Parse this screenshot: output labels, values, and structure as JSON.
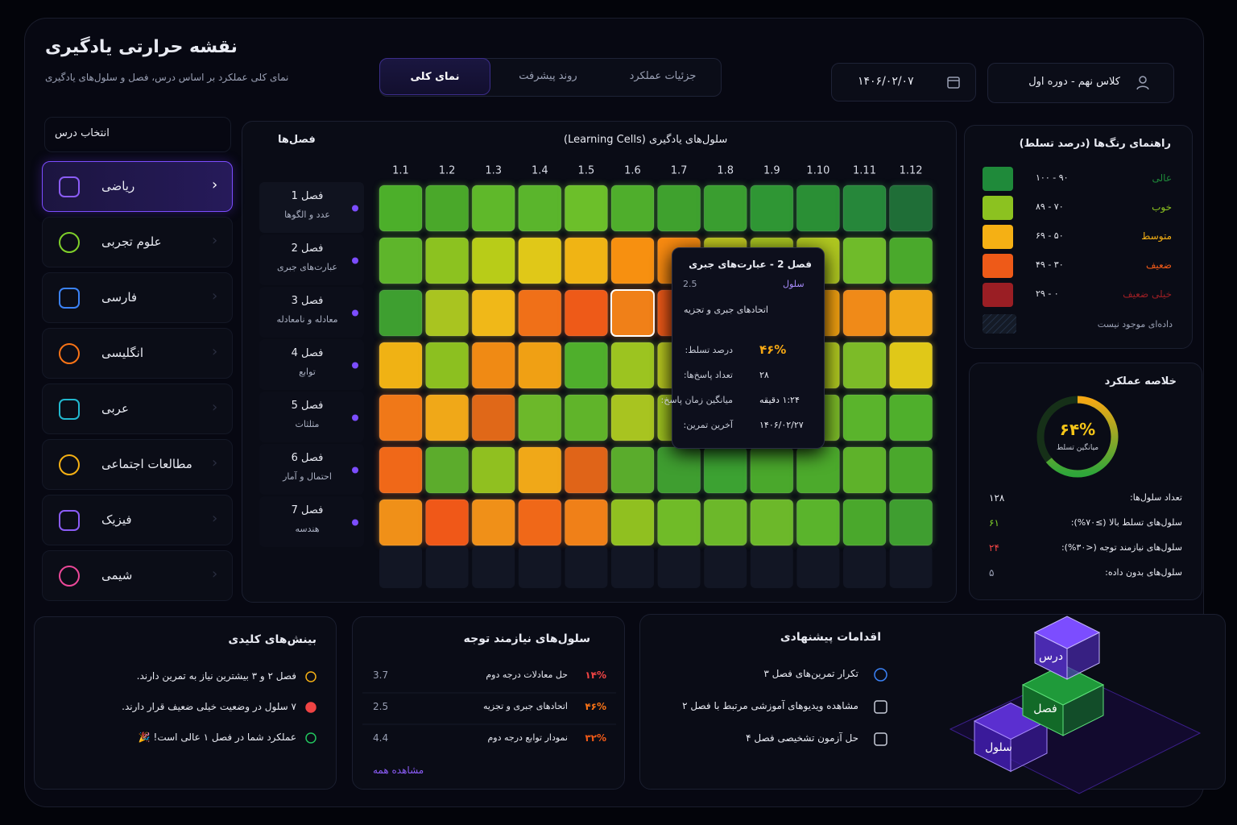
{
  "header": {
    "title": "نقشه حرارتی یادگیری",
    "subtitle": "نمای کلی عملکرد بر اساس درس، فصل و سلول‌های یادگیری",
    "tabs": [
      "نمای کلی",
      "روند پیشرفت",
      "جزئیات عملکرد"
    ],
    "date": "۱۴۰۶/۰۲/۰۷",
    "class_selector": "کلاس نهم - دوره اول"
  },
  "subjects": {
    "title": "انتخاب درس",
    "items": [
      "ریاضی",
      "علوم تجربی",
      "فارسی",
      "انگلیسی",
      "عربی",
      "مطالعات اجتماعی",
      "فیزیک",
      "شیمی"
    ]
  },
  "heatmap": {
    "title": "سلول‌های یادگیری (Learning Cells)",
    "rows_title": "فصل‌ها",
    "columns": [
      "1.1",
      "1.2",
      "1.3",
      "1.4",
      "1.5",
      "1.6",
      "1.7",
      "1.8",
      "1.9",
      "1.10",
      "1.11",
      "1.12"
    ],
    "rows": [
      {
        "chapter": "فصل 1",
        "topic": "عدد و الگوها",
        "colors": [
          "#4caf2a",
          "#4aa82a",
          "#5fb82a",
          "#5ab52c",
          "#6cbf2a",
          "#4fae2c",
          "#3fa12e",
          "#3a9e30",
          "#2f9634",
          "#2a8f35",
          "#26873a",
          "#1f6e37"
        ]
      },
      {
        "chapter": "فصل 2",
        "topic": "عبارت‌های جبری",
        "colors": [
          "#5eb52b",
          "#8cc220",
          "#b8cc18",
          "#e0c818",
          "#f0b414",
          "#f79010",
          "#f88a10",
          "#c0c820",
          "#a8c420",
          "#b0c820",
          "#6fbb2a",
          "#4aa92c"
        ]
      },
      {
        "chapter": "فصل 3",
        "topic": "معادله و نامعادله",
        "colors": [
          "#3e9f30",
          "#a9c420",
          "#f0b818",
          "#f07018",
          "#ee5a18",
          "#f08018",
          "#f05a18",
          "#f08018",
          "#c0c020",
          "#f0a010",
          "#f08a18",
          "#f0a818"
        ]
      },
      {
        "chapter": "فصل 4",
        "topic": "توابع",
        "colors": [
          "#f0b214",
          "#8cc020",
          "#f08a14",
          "#f0a014",
          "#4faf2c",
          "#9cc420",
          "#b8c820",
          "#c8c818",
          "#a0c420",
          "#b0c820",
          "#7cbb28",
          "#e0c818"
        ]
      },
      {
        "chapter": "فصل 5",
        "topic": "مثلثات",
        "colors": [
          "#f07818",
          "#f0a818",
          "#e06818",
          "#6cb82a",
          "#60b42a",
          "#a8c420",
          "#a0c420",
          "#8cc020",
          "#9cc224",
          "#7cbb28",
          "#5ab42c",
          "#4faf2c"
        ]
      },
      {
        "chapter": "فصل 6",
        "topic": "احتمال و آمار",
        "colors": [
          "#f06818",
          "#5cac2c",
          "#90c020",
          "#f0a818",
          "#e06418",
          "#5aac2c",
          "#3f9e30",
          "#3ca232",
          "#4aa82c",
          "#4caa2c",
          "#5eb22a",
          "#4aa82c"
        ]
      },
      {
        "chapter": "فصل 7",
        "topic": "هندسه",
        "colors": [
          "#f09018",
          "#f05818",
          "#f09018",
          "#f06818",
          "#f08018",
          "#90c020",
          "#70bb28",
          "#6cb82a",
          "#6cb82a",
          "#5ab42c",
          "#4aa82c",
          "#3f9e30"
        ]
      }
    ],
    "tooltip": {
      "chapter_tag": "فصل",
      "chapter": "فصل 2 - عبارت‌های جبری",
      "cell_tag": "سلول",
      "cell": "2.5",
      "topic": "اتحادهای جبری و تجزیه",
      "rows": [
        {
          "label": "درصد تسلط:",
          "value": "۴۶%"
        },
        {
          "label": "تعداد پاسخ‌ها:",
          "value": "۲۸"
        },
        {
          "label": "میانگین زمان پاسخ:",
          "value": "۱:۲۴ دقیقه"
        },
        {
          "label": "آخرین تمرین:",
          "value": "۱۴۰۶/۰۲/۲۷"
        }
      ]
    }
  },
  "legend": {
    "title": "راهنمای رنگ‌ها (درصد تسلط)",
    "items": [
      {
        "label": "عالی",
        "range": "۹۰ - ۱۰۰",
        "color": "#1f8a3a"
      },
      {
        "label": "خوب",
        "range": "۷۰ - ۸۹",
        "color": "#8cc220"
      },
      {
        "label": "متوسط",
        "range": "۵۰ - ۶۹",
        "color": "#f5b014"
      },
      {
        "label": "ضعیف",
        "range": "۳۰ - ۴۹",
        "color": "#ee5a18"
      },
      {
        "label": "خیلی ضعیف",
        "range": "۰ - ۲۹",
        "color": "#9a1e24"
      }
    ],
    "no_data": "داده‌ای موجود نیست"
  },
  "summary": {
    "title": "خلاصه عملکرد",
    "average": {
      "value": 64,
      "label": "۶۴%"
    },
    "average_caption": "میانگین تسلط",
    "stats": [
      {
        "label": "تعداد سلول‌ها:",
        "value": "۱۲۸"
      },
      {
        "label": "سلول‌های تسلط بالا (≥۷۰%):",
        "value": "۶۱"
      },
      {
        "label": "سلول‌های نیازمند توجه (<۳۰%):",
        "value": "۲۴"
      },
      {
        "label": "سلول‌های بدون داده:",
        "value": "۵"
      }
    ]
  },
  "insights": {
    "title": "بینش‌های کلیدی",
    "items": [
      "فصل ۲ و ۳ بیشترین نیاز به تمرین دارند.",
      "۷ سلول در وضعیت خیلی ضعیف قرار دارند.",
      "عملکرد شما در فصل ۱ عالی است! 🎉"
    ]
  },
  "attention": {
    "title": "سلول‌های نیازمند توجه",
    "items": [
      {
        "cell": "3.7",
        "name": "حل معادلات درجه دوم",
        "percent": "۱۴%"
      },
      {
        "cell": "2.5",
        "name": "اتحادهای جبری و تجزیه",
        "percent": "۴۶%"
      },
      {
        "cell": "4.4",
        "name": "نمودار توابع درجه دوم",
        "percent": "۳۲%"
      }
    ],
    "view_all": "مشاهده همه"
  },
  "actions": {
    "title": "اقدامات پیشنهادی",
    "items": [
      "تکرار تمرین‌های فصل ۳",
      "مشاهده ویدیوهای آموزشی مرتبط با فصل ۲",
      "حل آزمون تشخیصی فصل ۴"
    ]
  },
  "illustration": {
    "labels": [
      "درس",
      "فصل",
      "سلول"
    ]
  }
}
